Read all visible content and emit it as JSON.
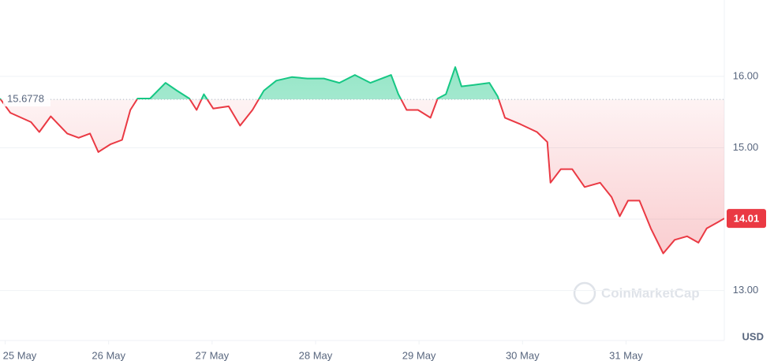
{
  "chart_data": {
    "type": "line",
    "x": [
      -0.05,
      0.05,
      0.25,
      0.33,
      0.44,
      0.6,
      0.71,
      0.82,
      0.9,
      1.02,
      1.13,
      1.21,
      1.28,
      1.4,
      1.55,
      1.66,
      1.78,
      1.85,
      1.92,
      2.01,
      2.16,
      2.27,
      2.39,
      2.5,
      2.62,
      2.77,
      2.92,
      3.08,
      3.23,
      3.38,
      3.53,
      3.73,
      3.8,
      3.88,
      3.99,
      4.11,
      4.18,
      4.26,
      4.35,
      4.41,
      4.53,
      4.68,
      4.76,
      4.83,
      4.98,
      5.14,
      5.24,
      5.27,
      5.37,
      5.48,
      5.6,
      5.75,
      5.86,
      5.94,
      6.02,
      6.13,
      6.24,
      6.36,
      6.47,
      6.59,
      6.7,
      6.78,
      6.89,
      6.95
    ],
    "values": [
      15.69,
      15.49,
      15.36,
      15.22,
      15.44,
      15.2,
      15.14,
      15.2,
      14.94,
      15.05,
      15.11,
      15.53,
      15.69,
      15.69,
      15.91,
      15.8,
      15.69,
      15.53,
      15.75,
      15.55,
      15.58,
      15.31,
      15.53,
      15.8,
      15.94,
      15.99,
      15.97,
      15.97,
      15.91,
      16.02,
      15.91,
      16.02,
      15.75,
      15.53,
      15.53,
      15.42,
      15.69,
      15.75,
      16.13,
      15.86,
      15.88,
      15.91,
      15.72,
      15.42,
      15.33,
      15.22,
      15.08,
      14.51,
      14.7,
      14.7,
      14.45,
      14.51,
      14.31,
      14.04,
      14.26,
      14.26,
      13.87,
      13.52,
      13.71,
      13.76,
      13.67,
      13.87,
      13.96,
      14.01
    ],
    "reference": 15.6778,
    "current_price": 14.01,
    "up_color": "#16c784",
    "down_color": "#ea3943",
    "xlim": [
      -0.05,
      6.95
    ],
    "xticks": [
      {
        "value": 0,
        "label": "25 May"
      },
      {
        "value": 1,
        "label": "26 May"
      },
      {
        "value": 2,
        "label": "27 May"
      },
      {
        "value": 3,
        "label": "28 May"
      },
      {
        "value": 4,
        "label": "29 May"
      },
      {
        "value": 5,
        "label": "30 May"
      },
      {
        "value": 6,
        "label": "31 May"
      }
    ],
    "ylim": [
      12.3,
      17.07
    ],
    "yticks": [
      {
        "value": 13,
        "label": "13.00"
      },
      {
        "value": 14,
        "label": "14.00"
      },
      {
        "value": 15,
        "label": "15.00"
      },
      {
        "value": 16,
        "label": "16.00"
      }
    ],
    "currency": "USD",
    "watermark": "CoinMarketCap",
    "grid": true
  }
}
